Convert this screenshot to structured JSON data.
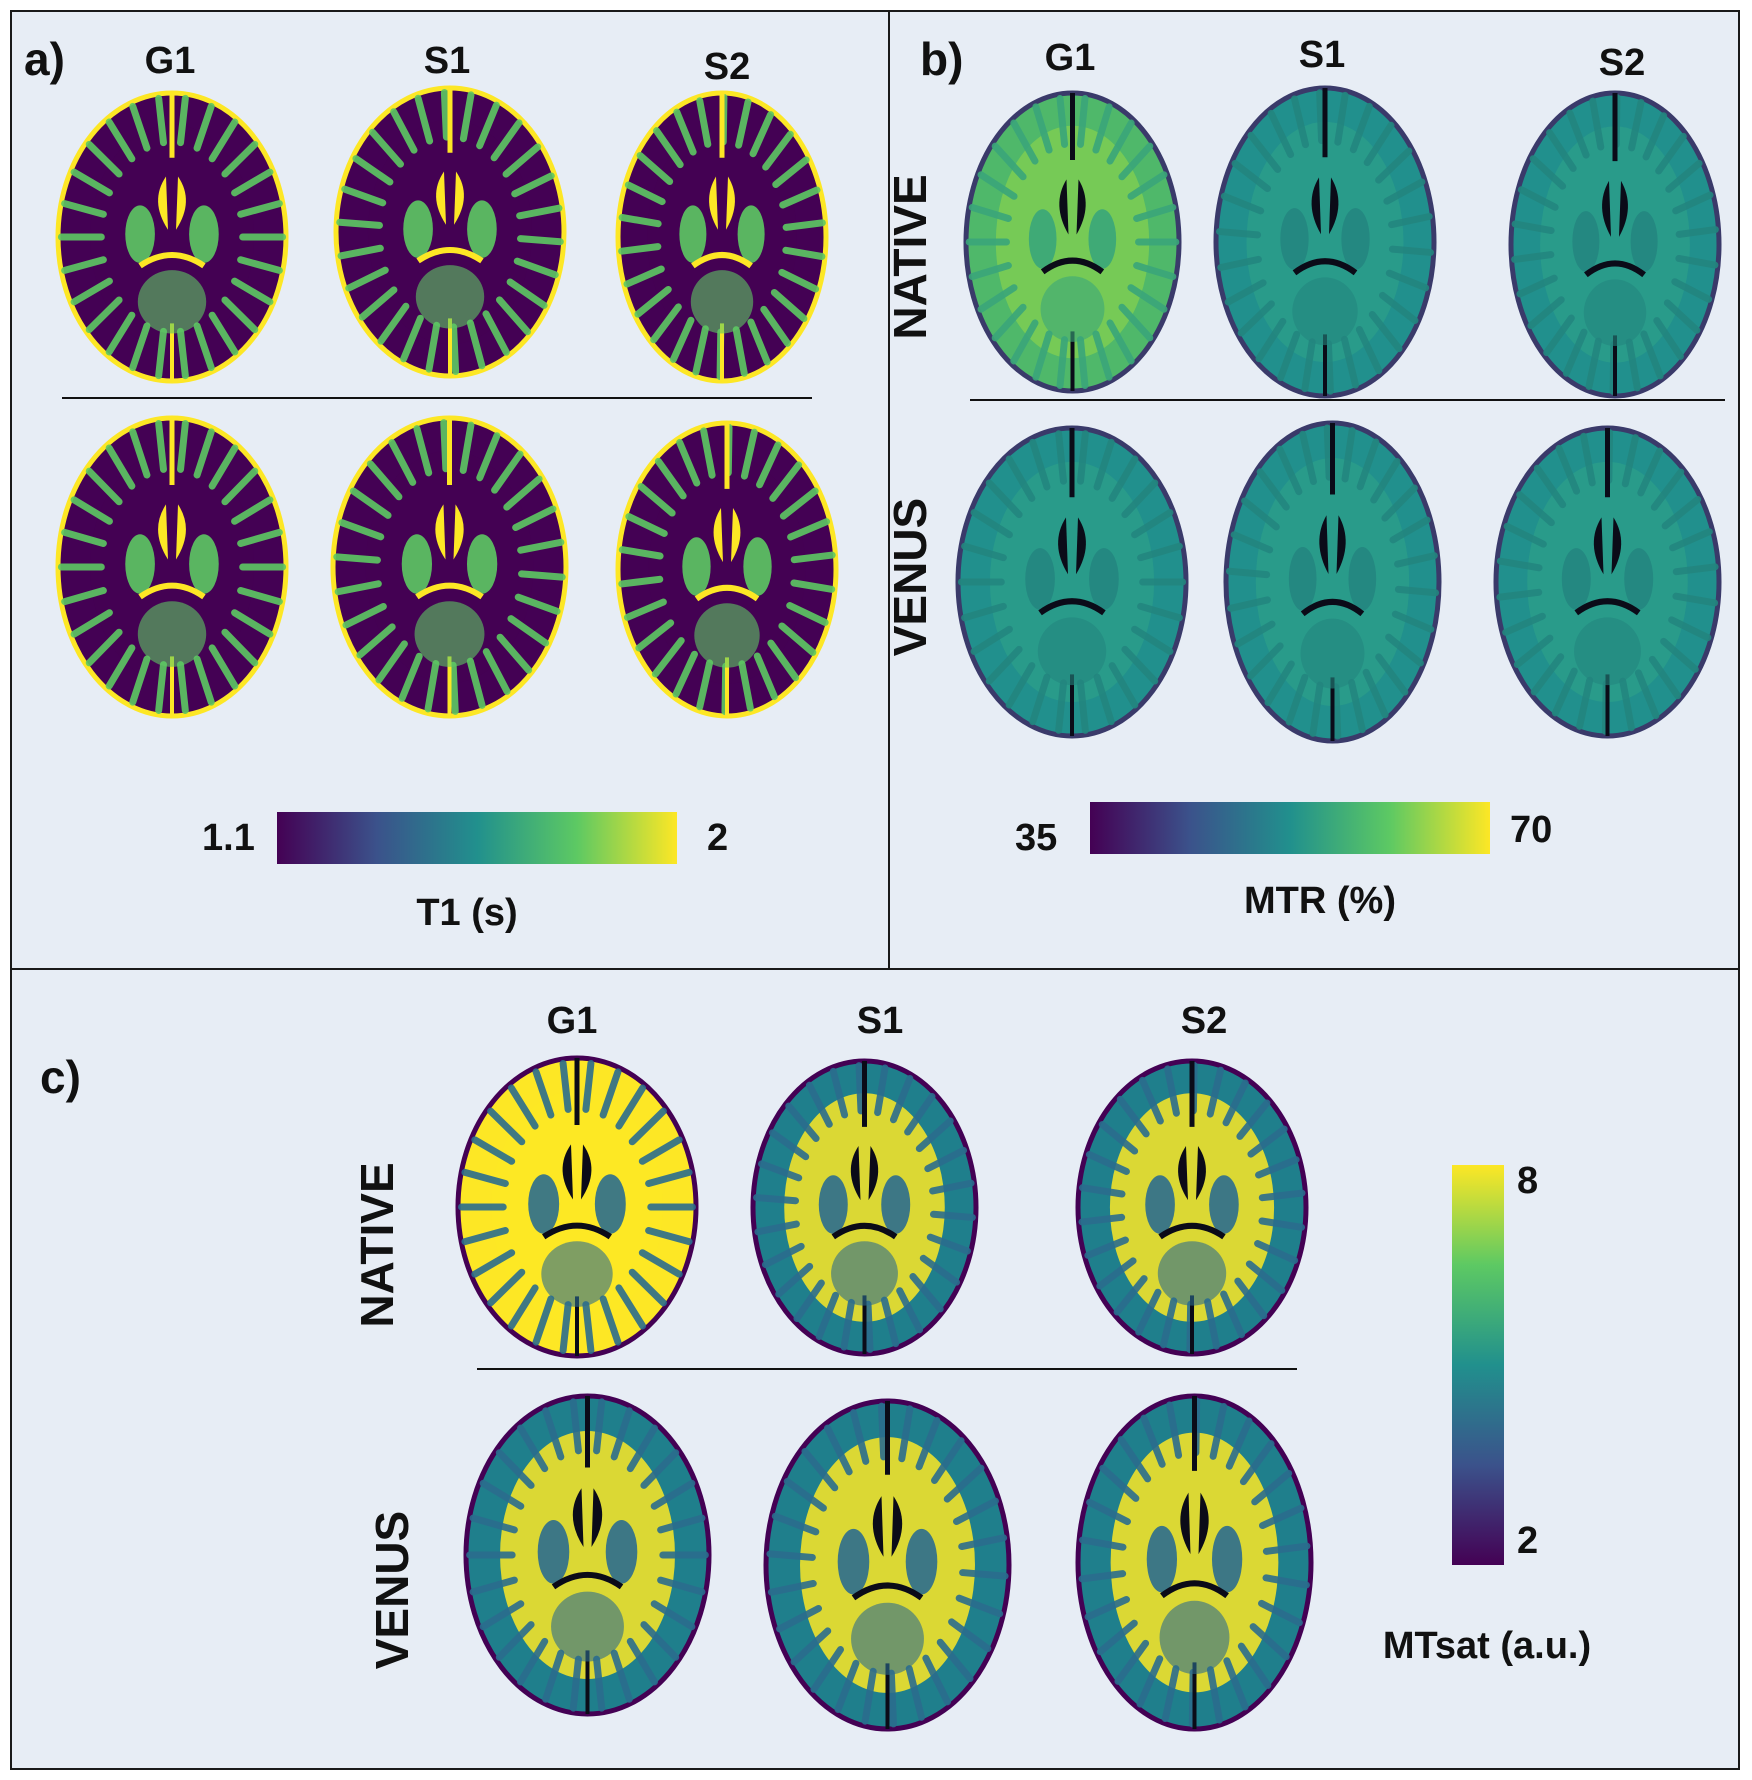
{
  "panel_a": {
    "label": "a)",
    "columns": [
      "G1",
      "S1",
      "S2"
    ],
    "colorbar": {
      "min": "1.1",
      "max": "2",
      "title": "T1 (s)"
    }
  },
  "panel_b": {
    "label": "b)",
    "columns": [
      "G1",
      "S1",
      "S2"
    ],
    "rows": [
      "NATIVE",
      "VENUS"
    ],
    "colorbar": {
      "min": "35",
      "max": "70",
      "title": "MTR (%)"
    }
  },
  "panel_c": {
    "label": "c)",
    "columns": [
      "G1",
      "S1",
      "S2"
    ],
    "rows": [
      "NATIVE",
      "VENUS"
    ],
    "colorbar": {
      "min": "2",
      "max": "8",
      "title": "MTsat (a.u.)"
    }
  },
  "colors": {
    "background": "#e7edf5",
    "viridis": [
      "#440154",
      "#3b528b",
      "#21908d",
      "#5dc963",
      "#fde725"
    ]
  }
}
